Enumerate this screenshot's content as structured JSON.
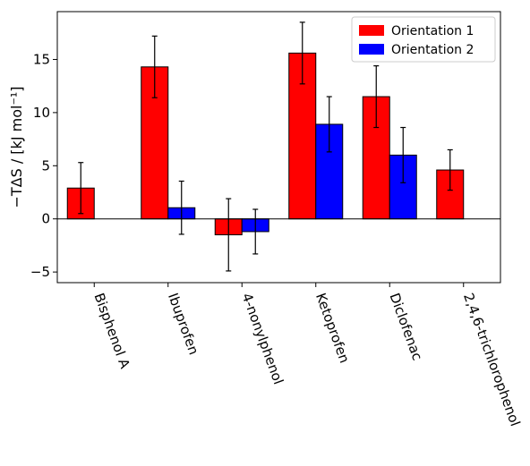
{
  "chart_data": {
    "type": "bar",
    "categories": [
      "Bisphenol A",
      "Ibuprofen",
      "4-nonylphenol",
      "Ketoprofen",
      "Diclofenac",
      "2,4,6-trichlorophenol"
    ],
    "series": [
      {
        "name": "Orientation 1",
        "color": "#ff0000",
        "values": [
          2.9,
          14.3,
          -1.5,
          15.6,
          11.5,
          4.6
        ],
        "errors": [
          2.4,
          2.9,
          3.4,
          2.9,
          2.9,
          1.9
        ]
      },
      {
        "name": "Orientation 2",
        "color": "#0000ff",
        "values": [
          null,
          1.05,
          -1.2,
          8.9,
          6.0,
          null
        ],
        "errors": [
          null,
          2.5,
          2.1,
          2.6,
          2.6,
          null
        ]
      }
    ],
    "ylabel": "−TΔS / [kJ mol⁻¹]",
    "ylim": [
      -6,
      19.5
    ],
    "yticks": [
      -5,
      0,
      5,
      10,
      15
    ],
    "ytick_labels": [
      "−5",
      "0",
      "5",
      "10",
      "15"
    ],
    "legend_position": "upper-right",
    "grid": false
  }
}
